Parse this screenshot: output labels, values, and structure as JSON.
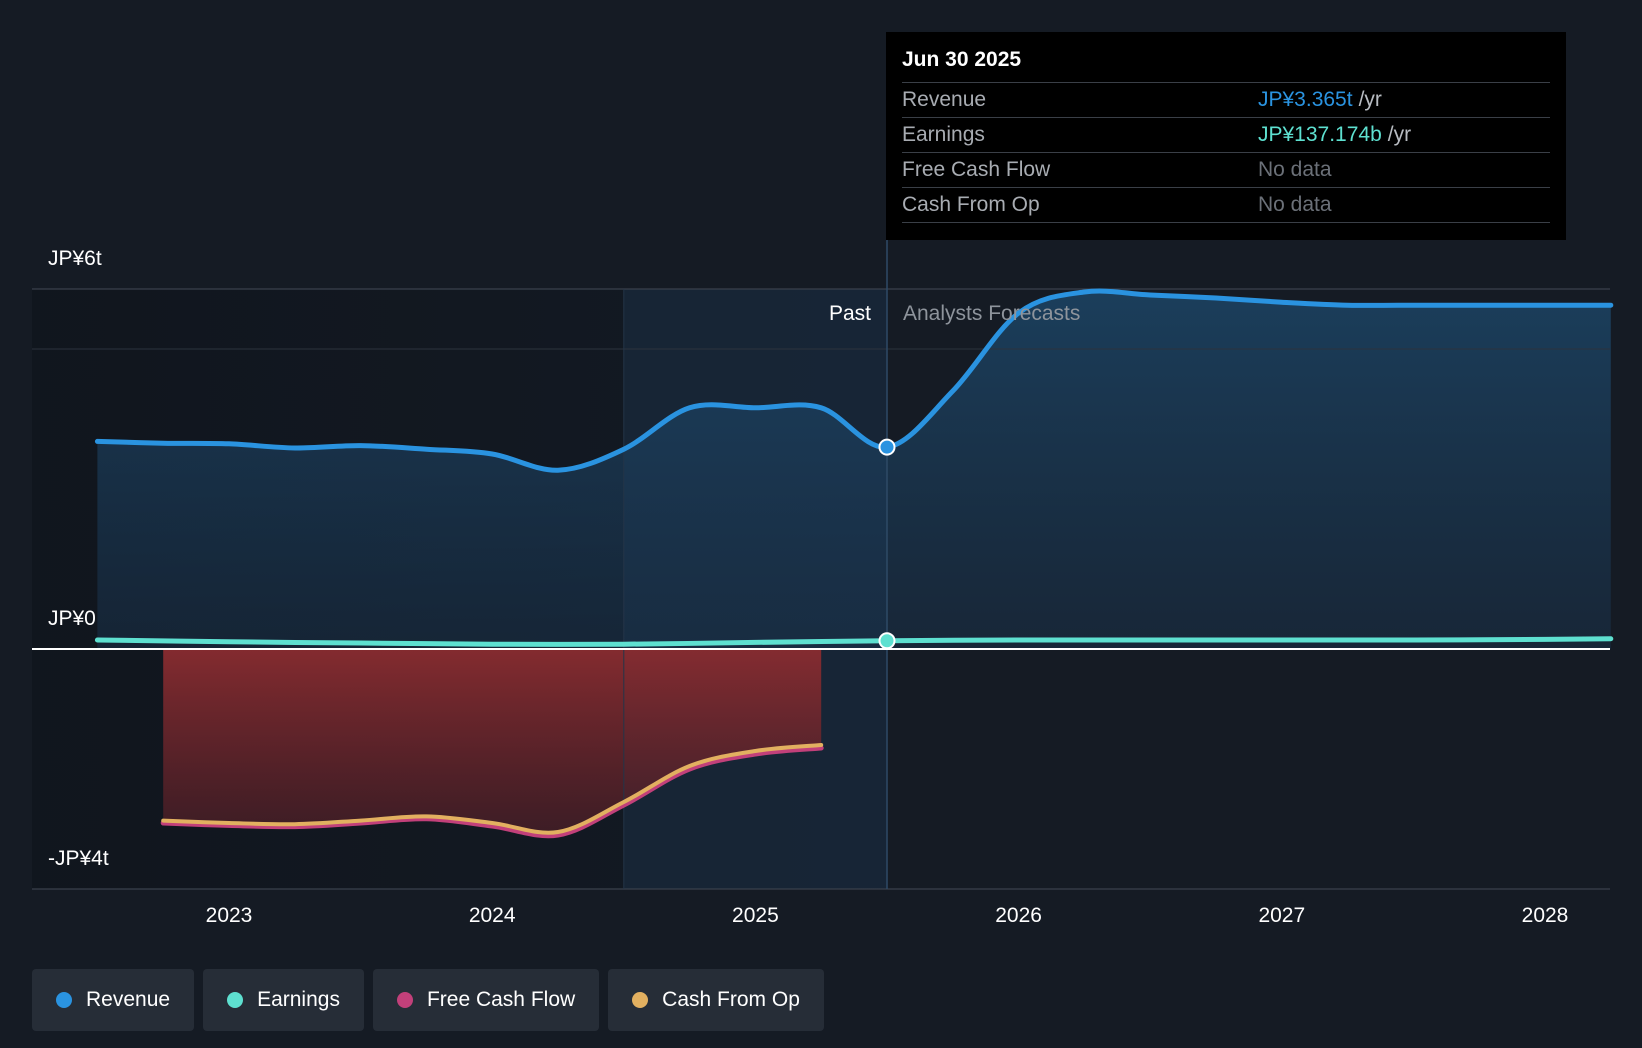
{
  "chart_data": {
    "type": "area",
    "y_axis_labels": [
      "JP¥6t",
      "JP¥0",
      "-JP¥4t"
    ],
    "ylim": [
      -4,
      6
    ],
    "unit": "trillion JPY",
    "x_ticks": [
      "2023",
      "2024",
      "2025",
      "2026",
      "2027",
      "2028"
    ],
    "divider_labels": {
      "past": "Past",
      "forecast": "Analysts Forecasts"
    },
    "past_end": 2025.5,
    "series": [
      {
        "name": "Revenue",
        "color": "#2a93e0",
        "points": [
          [
            2022.5,
            3.46
          ],
          [
            2022.75,
            3.43
          ],
          [
            2023.0,
            3.42
          ],
          [
            2023.25,
            3.35
          ],
          [
            2023.5,
            3.39
          ],
          [
            2023.75,
            3.33
          ],
          [
            2024.0,
            3.25
          ],
          [
            2024.25,
            2.98
          ],
          [
            2024.5,
            3.33
          ],
          [
            2024.75,
            4.02
          ],
          [
            2025.0,
            4.02
          ],
          [
            2025.25,
            4.02
          ],
          [
            2025.5,
            3.365
          ],
          [
            2025.75,
            4.3
          ],
          [
            2026.0,
            5.6
          ],
          [
            2026.25,
            5.95
          ],
          [
            2026.5,
            5.9
          ],
          [
            2026.75,
            5.85
          ],
          [
            2027.0,
            5.78
          ],
          [
            2027.25,
            5.73
          ],
          [
            2027.5,
            5.73
          ],
          [
            2028.0,
            5.73
          ],
          [
            2028.25,
            5.73
          ]
        ]
      },
      {
        "name": "Earnings",
        "color": "#5ee0d0",
        "points": [
          [
            2022.5,
            0.15
          ],
          [
            2023.0,
            0.12
          ],
          [
            2023.5,
            0.1
          ],
          [
            2024.0,
            0.08
          ],
          [
            2024.5,
            0.08
          ],
          [
            2025.0,
            0.11
          ],
          [
            2025.5,
            0.137
          ],
          [
            2026.0,
            0.15
          ],
          [
            2026.5,
            0.15
          ],
          [
            2027.0,
            0.15
          ],
          [
            2027.5,
            0.15
          ],
          [
            2028.0,
            0.16
          ],
          [
            2028.25,
            0.17
          ]
        ]
      },
      {
        "name": "Free Cash Flow",
        "color": "#c2407a",
        "points": [
          [
            2022.75,
            -2.9
          ],
          [
            2023.0,
            -2.94
          ],
          [
            2023.25,
            -2.96
          ],
          [
            2023.5,
            -2.9
          ],
          [
            2023.75,
            -2.83
          ],
          [
            2024.0,
            -2.95
          ],
          [
            2024.25,
            -3.1
          ],
          [
            2024.5,
            -2.6
          ],
          [
            2024.75,
            -2.0
          ],
          [
            2025.0,
            -1.75
          ],
          [
            2025.25,
            -1.65
          ]
        ]
      },
      {
        "name": "Cash From Op",
        "color": "#e2b060",
        "points": [
          [
            2022.75,
            -2.86
          ],
          [
            2023.0,
            -2.9
          ],
          [
            2023.25,
            -2.92
          ],
          [
            2023.5,
            -2.86
          ],
          [
            2023.75,
            -2.79
          ],
          [
            2024.0,
            -2.9
          ],
          [
            2024.25,
            -3.05
          ],
          [
            2024.5,
            -2.55
          ],
          [
            2024.75,
            -1.95
          ],
          [
            2025.0,
            -1.7
          ],
          [
            2025.25,
            -1.6
          ]
        ]
      }
    ],
    "legend": [
      "Revenue",
      "Earnings",
      "Free Cash Flow",
      "Cash From Op"
    ],
    "legend_position": "bottom-left"
  },
  "tooltip": {
    "date": "Jun 30 2025",
    "rows": [
      {
        "label": "Revenue",
        "value": "JP¥3.365t",
        "unit": "/yr",
        "color": "#2a93e0"
      },
      {
        "label": "Earnings",
        "value": "JP¥137.174b",
        "unit": "/yr",
        "color": "#5ee0d0"
      },
      {
        "label": "Free Cash Flow",
        "value": "No data",
        "unit": "",
        "color": "#6b7078"
      },
      {
        "label": "Cash From Op",
        "value": "No data",
        "unit": "",
        "color": "#6b7078"
      }
    ]
  },
  "legend_items": [
    {
      "label": "Revenue",
      "color": "#2a93e0"
    },
    {
      "label": "Earnings",
      "color": "#5ee0d0"
    },
    {
      "label": "Free Cash Flow",
      "color": "#c2407a"
    },
    {
      "label": "Cash From Op",
      "color": "#e2b060"
    }
  ]
}
